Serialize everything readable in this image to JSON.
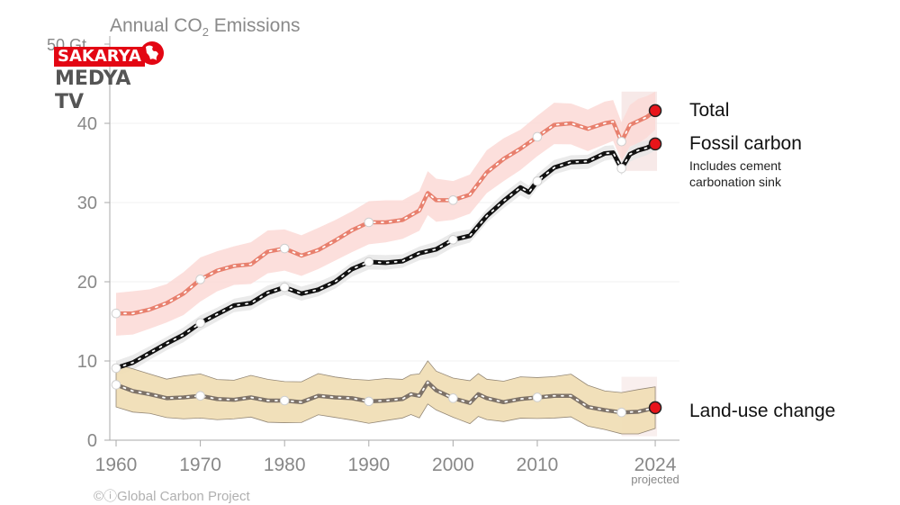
{
  "header": {
    "title_main": "Annual CO",
    "title_sub": "2",
    "title_rest": " Emissions"
  },
  "logo": {
    "line1": "SAKARYA",
    "line2": "MEDYA TV",
    "icon": "globe-icon",
    "brand_color": "#e30613"
  },
  "legend": {
    "total": "Total",
    "fossil": "Fossil carbon",
    "fossil_note_1": "Includes cement",
    "fossil_note_2": "carbonation sink",
    "landuse": "Land-use change"
  },
  "credit": "©ⓘGlobal Carbon Project",
  "chart_data": {
    "type": "line",
    "title": "Annual CO2 Emissions",
    "xlabel": "",
    "ylabel": "Gt",
    "xlim": [
      1959,
      2027
    ],
    "ylim": [
      0,
      50
    ],
    "y_ticks": [
      {
        "value": 0,
        "label": "0"
      },
      {
        "value": 10,
        "label": "10"
      },
      {
        "value": 20,
        "label": "20"
      },
      {
        "value": 30,
        "label": "30"
      },
      {
        "value": 40,
        "label": "40"
      },
      {
        "value": 50,
        "label": "50 Gt"
      }
    ],
    "x_ticks": [
      {
        "value": 1960,
        "label": "1960"
      },
      {
        "value": 1970,
        "label": "1970"
      },
      {
        "value": 1980,
        "label": "1980"
      },
      {
        "value": 1990,
        "label": "1990"
      },
      {
        "value": 2000,
        "label": "2000"
      },
      {
        "value": 2010,
        "label": "2010"
      },
      {
        "value": 2024,
        "label": "2024",
        "sublabel": "projected"
      }
    ],
    "grid": true,
    "legend_position": "right",
    "projection_start": 2020,
    "series": [
      {
        "name": "Total",
        "color": "#e8806e",
        "band_color": "#fbd9d6",
        "x": [
          1960,
          1962,
          1964,
          1966,
          1968,
          1970,
          1972,
          1974,
          1976,
          1978,
          1980,
          1982,
          1984,
          1986,
          1988,
          1990,
          1992,
          1994,
          1996,
          1997,
          1998,
          2000,
          2002,
          2004,
          2006,
          2008,
          2010,
          2012,
          2014,
          2016,
          2018,
          2019,
          2020,
          2021,
          2022,
          2023,
          2024
        ],
        "values": [
          16.0,
          16.0,
          16.5,
          17.3,
          18.5,
          20.3,
          21.4,
          22.0,
          22.2,
          23.8,
          24.2,
          23.3,
          24.0,
          25.2,
          26.5,
          27.5,
          27.5,
          27.8,
          29.0,
          31.2,
          30.3,
          30.3,
          31.0,
          33.8,
          35.5,
          36.8,
          38.3,
          39.8,
          40.0,
          39.3,
          40.0,
          40.2,
          37.7,
          39.8,
          40.3,
          40.8,
          41.6
        ],
        "band_half_width": 2.6,
        "open_markers": [
          1960,
          1970,
          1980,
          1990,
          2000,
          2010,
          2020
        ],
        "end_marker": {
          "year": 2024,
          "value": 41.6
        }
      },
      {
        "name": "Fossil carbon",
        "color": "#111111",
        "band_color": "#e6e6e6",
        "x": [
          1960,
          1962,
          1964,
          1966,
          1968,
          1970,
          1972,
          1974,
          1976,
          1978,
          1980,
          1982,
          1984,
          1986,
          1988,
          1990,
          1992,
          1994,
          1996,
          1998,
          2000,
          2002,
          2004,
          2006,
          2008,
          2009,
          2010,
          2012,
          2014,
          2016,
          2018,
          2019,
          2020,
          2021,
          2022,
          2023,
          2024
        ],
        "values": [
          9.1,
          9.8,
          11.0,
          12.2,
          13.3,
          14.8,
          15.9,
          17.0,
          17.3,
          18.6,
          19.3,
          18.5,
          19.0,
          20.0,
          21.6,
          22.5,
          22.4,
          22.6,
          23.6,
          24.1,
          25.3,
          25.8,
          28.3,
          30.2,
          31.9,
          31.3,
          32.7,
          34.4,
          35.1,
          35.2,
          36.2,
          36.3,
          34.3,
          36.1,
          36.6,
          36.9,
          37.4
        ],
        "band_half_width": 0.9,
        "open_markers": [
          1960,
          1970,
          1980,
          1990,
          2000,
          2010,
          2020
        ],
        "end_marker": {
          "year": 2024,
          "value": 37.4
        }
      },
      {
        "name": "Land-use change",
        "color": "#7d7268",
        "band_color": "#f1dfb7",
        "x": [
          1960,
          1962,
          1964,
          1966,
          1968,
          1970,
          1972,
          1974,
          1976,
          1978,
          1980,
          1982,
          1984,
          1986,
          1988,
          1990,
          1992,
          1994,
          1995,
          1996,
          1997,
          1998,
          2000,
          2002,
          2003,
          2004,
          2006,
          2008,
          2010,
          2012,
          2014,
          2016,
          2018,
          2020,
          2022,
          2024
        ],
        "values": [
          7.0,
          6.2,
          5.8,
          5.3,
          5.4,
          5.6,
          5.2,
          5.1,
          5.4,
          5.0,
          5.0,
          4.8,
          5.6,
          5.4,
          5.3,
          4.9,
          5.0,
          5.2,
          5.8,
          5.6,
          7.3,
          6.3,
          5.3,
          4.7,
          5.8,
          5.3,
          4.8,
          5.2,
          5.4,
          5.6,
          5.6,
          4.2,
          3.8,
          3.5,
          3.6,
          4.1
        ],
        "band_half_width": 2.6,
        "open_markers": [
          1960,
          1970,
          1980,
          1990,
          2000,
          2010,
          2020
        ],
        "end_marker": {
          "year": 2024,
          "value": 4.1
        }
      }
    ]
  }
}
